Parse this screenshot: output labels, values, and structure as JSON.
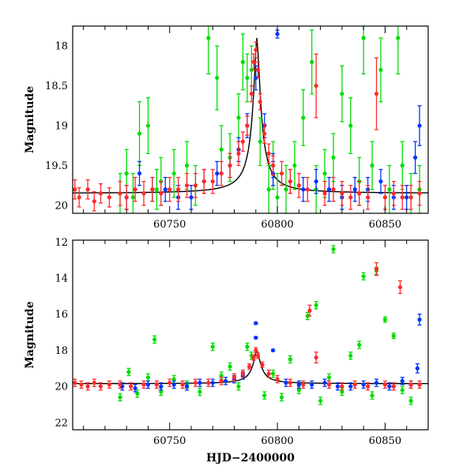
{
  "chart_data": [
    {
      "type": "scatter",
      "xlabel": "",
      "ylabel": "Magnitude",
      "xlim": [
        60705,
        60870
      ],
      "ylim": [
        20.1,
        17.75
      ],
      "y_inverted": true,
      "x_ticks": [
        60750,
        60800,
        60850
      ],
      "y_ticks": [
        18,
        18.5,
        19,
        19.5,
        20
      ],
      "y_tick_labels": [
        "18",
        "18.5",
        "19",
        "19.5",
        "20"
      ],
      "error_bars": true,
      "series_colors": [
        "#00dd00",
        "#0033ff",
        "#ff2a2a"
      ],
      "model_line": {
        "color": "#000000",
        "baseline": 19.85,
        "peak_x": 60790.5,
        "peak": 17.9
      },
      "series": [
        {
          "color": "#00dd00",
          "x": [
            60727,
            60730,
            60733,
            60736,
            60740,
            60744,
            60746,
            60752,
            60758,
            60762,
            60768,
            60772,
            60774,
            60778,
            60782,
            60784,
            60786,
            60788,
            60792,
            60796,
            60798,
            60800,
            60804,
            60808,
            60812,
            60816,
            60818,
            60822,
            60826,
            60830,
            60834,
            60838,
            60840,
            60844,
            60848,
            60852,
            60856,
            60858,
            60862,
            60866
          ],
          "y": [
            19.85,
            19.6,
            19.9,
            19.1,
            19.0,
            19.8,
            19.7,
            19.6,
            19.5,
            19.75,
            17.9,
            18.4,
            19.3,
            19.4,
            18.9,
            18.2,
            18.4,
            18.3,
            19.2,
            19.8,
            19.5,
            19.9,
            19.8,
            19.5,
            18.9,
            18.2,
            19.8,
            19.6,
            19.4,
            18.6,
            19.0,
            19.7,
            17.9,
            19.5,
            18.3,
            19.8,
            17.9,
            19.5,
            19.9,
            19.8
          ],
          "yerr": [
            0.25,
            0.3,
            0.3,
            0.4,
            0.35,
            0.25,
            0.3,
            0.3,
            0.3,
            0.25,
            0.45,
            0.4,
            0.3,
            0.3,
            0.3,
            0.35,
            0.3,
            0.3,
            0.3,
            0.3,
            0.3,
            0.3,
            0.3,
            0.3,
            0.35,
            0.4,
            0.3,
            0.3,
            0.3,
            0.35,
            0.35,
            0.3,
            0.45,
            0.3,
            0.4,
            0.3,
            0.45,
            0.3,
            0.3,
            0.3
          ]
        },
        {
          "color": "#0033ff",
          "x": [
            60730,
            60736,
            60742,
            60748,
            60754,
            60760,
            60766,
            60772,
            60778,
            60782,
            60786,
            60790,
            60794,
            60798,
            60800,
            60806,
            60812,
            60818,
            60824,
            60830,
            60836,
            60842,
            60848,
            60854,
            60860,
            60864,
            60866,
            60798
          ],
          "y": [
            19.9,
            19.6,
            19.8,
            19.8,
            19.9,
            19.9,
            19.7,
            19.6,
            19.5,
            19.3,
            19.0,
            18.4,
            19.0,
            19.6,
            17.85,
            19.7,
            19.8,
            19.7,
            19.8,
            19.9,
            19.8,
            19.8,
            19.7,
            19.9,
            19.9,
            19.4,
            19.0,
            19.5
          ],
          "yerr": [
            0.15,
            0.15,
            0.15,
            0.15,
            0.15,
            0.15,
            0.15,
            0.15,
            0.15,
            0.15,
            0.15,
            0.15,
            0.15,
            0.15,
            0.05,
            0.15,
            0.15,
            0.15,
            0.15,
            0.15,
            0.15,
            0.15,
            0.15,
            0.15,
            0.15,
            0.2,
            0.25,
            0.15
          ]
        },
        {
          "color": "#ff2a2a",
          "x": [
            60706,
            60708,
            60712,
            60715,
            60718,
            60722,
            60727,
            60730,
            60734,
            60738,
            60742,
            60746,
            60750,
            60754,
            60758,
            60762,
            60766,
            60770,
            60774,
            60778,
            60782,
            60784,
            60786,
            60788,
            60789,
            60790,
            60791,
            60792,
            60794,
            60796,
            60798,
            60802,
            60806,
            60810,
            60814,
            60818,
            60822,
            60826,
            60830,
            60834,
            60838,
            60842,
            60846,
            60850,
            60854,
            60858,
            60862,
            60866
          ],
          "y": [
            19.8,
            19.9,
            19.8,
            19.95,
            19.85,
            19.9,
            19.85,
            19.9,
            19.8,
            19.85,
            19.8,
            19.85,
            19.8,
            19.8,
            19.75,
            19.75,
            19.7,
            19.7,
            19.6,
            19.5,
            19.35,
            19.2,
            19.0,
            18.6,
            18.2,
            18.05,
            18.3,
            18.7,
            19.1,
            19.35,
            19.5,
            19.6,
            19.7,
            19.75,
            19.8,
            18.5,
            19.85,
            19.8,
            19.85,
            19.9,
            19.85,
            19.9,
            18.6,
            19.9,
            19.85,
            19.9,
            19.9,
            19.85
          ],
          "yerr": [
            0.12,
            0.12,
            0.12,
            0.12,
            0.12,
            0.12,
            0.15,
            0.15,
            0.15,
            0.15,
            0.15,
            0.15,
            0.15,
            0.15,
            0.15,
            0.15,
            0.15,
            0.15,
            0.15,
            0.15,
            0.15,
            0.12,
            0.12,
            0.1,
            0.1,
            0.1,
            0.1,
            0.1,
            0.12,
            0.12,
            0.12,
            0.15,
            0.15,
            0.15,
            0.15,
            0.4,
            0.15,
            0.15,
            0.15,
            0.15,
            0.15,
            0.15,
            0.45,
            0.15,
            0.15,
            0.15,
            0.15,
            0.15
          ]
        }
      ]
    },
    {
      "type": "scatter",
      "xlabel": "HJD−2400000",
      "ylabel": "Magnitude",
      "xlim": [
        60705,
        60870
      ],
      "ylim": [
        22.4,
        11.9
      ],
      "y_inverted": true,
      "x_ticks": [
        60750,
        60800,
        60850
      ],
      "y_ticks": [
        12,
        14,
        16,
        18,
        20,
        22
      ],
      "y_tick_labels": [
        "12",
        "14",
        "16",
        "18",
        "20",
        "22"
      ],
      "error_bars": true,
      "series_colors": [
        "#00dd00",
        "#0033ff",
        "#ff2a2a"
      ],
      "model_line": {
        "color": "#000000",
        "baseline": 19.85,
        "peak_x": 60790.5,
        "peak": 18.0
      },
      "series": [
        {
          "color": "#00dd00",
          "x": [
            60727,
            60731,
            60735,
            60740,
            60743,
            60746,
            60752,
            60758,
            60764,
            60770,
            60774,
            60778,
            60782,
            60786,
            60788,
            60794,
            60798,
            60802,
            60806,
            60810,
            60814,
            60818,
            60820,
            60824,
            60826,
            60830,
            60834,
            60838,
            60840,
            60844,
            60846,
            60850,
            60854,
            60858,
            60862
          ],
          "y": [
            20.6,
            19.2,
            20.4,
            19.5,
            17.4,
            20.3,
            19.6,
            19.9,
            20.3,
            17.8,
            19.4,
            18.9,
            20.0,
            17.8,
            18.3,
            20.5,
            19.3,
            20.6,
            18.5,
            20.2,
            16.1,
            15.5,
            20.8,
            19.5,
            12.4,
            20.3,
            18.3,
            17.7,
            13.9,
            20.5,
            13.6,
            16.3,
            17.2,
            20.2,
            20.8
          ],
          "yerr": [
            0.2,
            0.2,
            0.2,
            0.2,
            0.2,
            0.2,
            0.2,
            0.2,
            0.2,
            0.2,
            0.2,
            0.2,
            0.2,
            0.2,
            0.2,
            0.2,
            0.2,
            0.2,
            0.2,
            0.2,
            0.2,
            0.2,
            0.2,
            0.2,
            0.2,
            0.2,
            0.2,
            0.2,
            0.2,
            0.2,
            0.2,
            0.15,
            0.15,
            0.2,
            0.2
          ]
        },
        {
          "color": "#0033ff",
          "x": [
            60728,
            60734,
            60740,
            60746,
            60752,
            60758,
            60764,
            60770,
            60776,
            60780,
            60784,
            60790,
            60790,
            60798,
            60804,
            60810,
            60816,
            60822,
            60828,
            60834,
            60840,
            60846,
            60852,
            60858,
            60862,
            60865,
            60866
          ],
          "y": [
            20.0,
            20.1,
            19.9,
            20.0,
            19.9,
            20.0,
            19.8,
            19.8,
            19.7,
            19.6,
            19.4,
            16.5,
            17.3,
            18.0,
            19.8,
            19.9,
            19.9,
            19.8,
            20.0,
            20.0,
            19.9,
            19.8,
            20.0,
            19.7,
            19.9,
            19.0,
            16.3
          ],
          "yerr": [
            0.2,
            0.2,
            0.2,
            0.2,
            0.2,
            0.2,
            0.2,
            0.2,
            0.2,
            0.2,
            0.2,
            0.05,
            0.05,
            0.05,
            0.2,
            0.2,
            0.2,
            0.2,
            0.2,
            0.2,
            0.2,
            0.2,
            0.2,
            0.2,
            0.2,
            0.25,
            0.3
          ]
        },
        {
          "color": "#ff2a2a",
          "x": [
            60706,
            60709,
            60712,
            60715,
            60718,
            60722,
            60727,
            60732,
            60738,
            60744,
            60750,
            60756,
            60762,
            60768,
            60774,
            60780,
            60784,
            60787,
            60789,
            60790,
            60791,
            60793,
            60796,
            60800,
            60806,
            60812,
            60815,
            60818,
            60824,
            60830,
            60836,
            60842,
            60846,
            60850,
            60854,
            60857,
            60862,
            60866
          ],
          "y": [
            19.8,
            19.9,
            20.0,
            19.8,
            20.0,
            19.9,
            19.9,
            20.0,
            19.9,
            19.9,
            19.8,
            19.9,
            19.8,
            19.8,
            19.7,
            19.5,
            19.3,
            18.9,
            18.4,
            18.0,
            18.3,
            18.8,
            19.3,
            19.6,
            19.8,
            19.9,
            15.8,
            18.4,
            19.9,
            20.0,
            19.9,
            20.0,
            13.5,
            19.9,
            20.0,
            14.5,
            19.9,
            19.9
          ],
          "yerr": [
            0.2,
            0.2,
            0.2,
            0.2,
            0.2,
            0.2,
            0.2,
            0.2,
            0.2,
            0.2,
            0.2,
            0.2,
            0.2,
            0.2,
            0.2,
            0.2,
            0.2,
            0.15,
            0.15,
            0.15,
            0.15,
            0.15,
            0.2,
            0.2,
            0.2,
            0.2,
            0.3,
            0.3,
            0.2,
            0.2,
            0.2,
            0.2,
            0.35,
            0.2,
            0.2,
            0.35,
            0.2,
            0.2
          ]
        }
      ]
    }
  ]
}
